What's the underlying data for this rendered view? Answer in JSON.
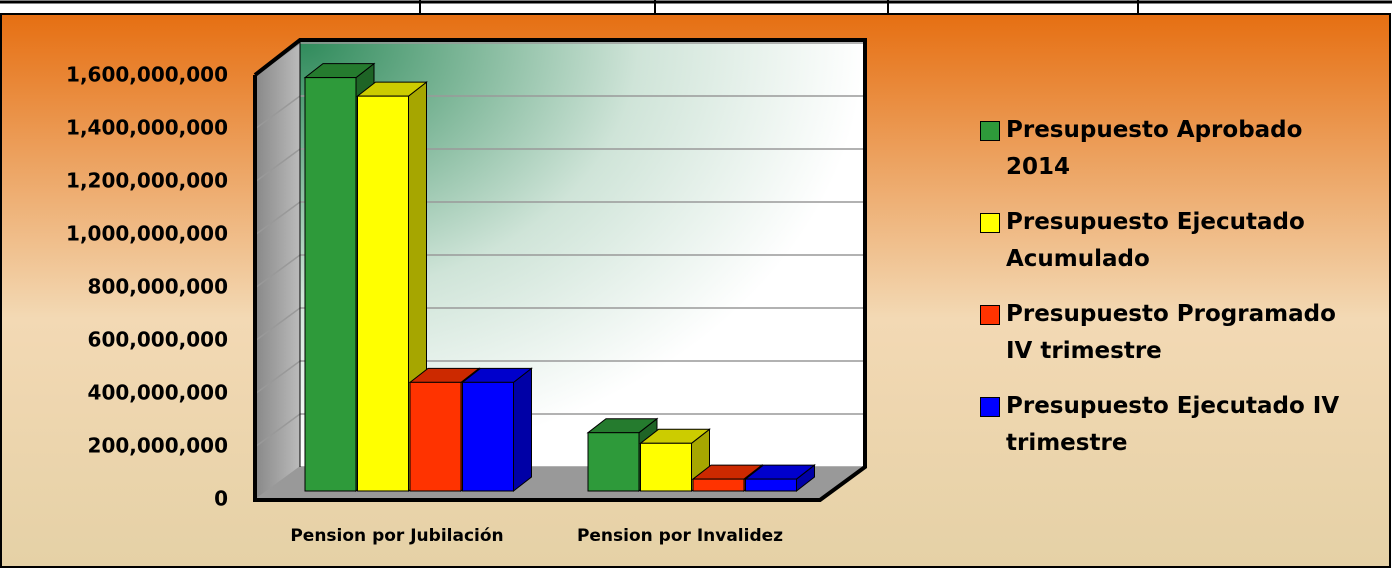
{
  "chart_data": {
    "type": "bar3d",
    "categories": [
      "Pension por Jubilación",
      "Pension por Invalidez"
    ],
    "series": [
      {
        "name": "Presupuesto Aprobado 2014",
        "color": "#2e9a3a",
        "values": [
          1560000000,
          220000000
        ]
      },
      {
        "name": "Presupuesto Ejecutado Acumulado",
        "color": "#ffff00",
        "values": [
          1490000000,
          180000000
        ]
      },
      {
        "name": "Presupuesto Programado IV trimestre",
        "color": "#ff3300",
        "values": [
          410000000,
          45000000
        ]
      },
      {
        "name": "Presupuesto Ejecutado IV trimestre",
        "color": "#0000ff",
        "values": [
          410000000,
          45000000
        ]
      }
    ],
    "ylim": [
      0,
      1600000000
    ],
    "yticks": [
      0,
      {
        "value": 200000000,
        "label": "200,000,000"
      },
      {
        "value": 400000000,
        "label": "400,000,000"
      },
      {
        "value": 600000000,
        "label": "600,000,000"
      },
      {
        "value": 800000000,
        "label": "800,000,000"
      },
      {
        "value": 1000000000,
        "label": "1,000,000,000"
      },
      {
        "value": 1200000000,
        "label": "1,200,000,000"
      },
      {
        "value": 1400000000,
        "label": "1,400,000,000"
      },
      {
        "value": 1600000000,
        "label": "1,600,000,000"
      }
    ],
    "grid": true,
    "legend": "right"
  }
}
